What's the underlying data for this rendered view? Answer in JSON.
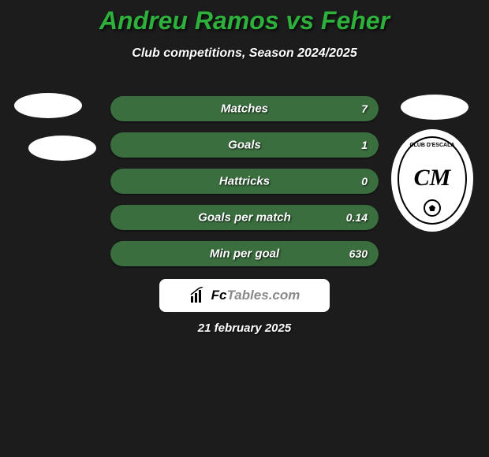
{
  "title": {
    "text": "Andreu Ramos vs Feher",
    "color": "#2eb13c",
    "fontsize": 32
  },
  "subtitle": {
    "text": "Club competitions, Season 2024/2025",
    "color": "#ffffff",
    "fontsize": 16
  },
  "background_color": "#1c1c1c",
  "rows": [
    {
      "label": "Matches",
      "value": "7",
      "fill_color": "#3a6e3e",
      "fill_pct": 100
    },
    {
      "label": "Goals",
      "value": "1",
      "fill_color": "#3a6e3e",
      "fill_pct": 100
    },
    {
      "label": "Hattricks",
      "value": "0",
      "fill_color": "#3a6e3e",
      "fill_pct": 100
    },
    {
      "label": "Goals per match",
      "value": "0.14",
      "fill_color": "#3a6e3e",
      "fill_pct": 100
    },
    {
      "label": "Min per goal",
      "value": "630",
      "fill_color": "#3a6e3e",
      "fill_pct": 100
    }
  ],
  "row_style": {
    "height": 32,
    "radius": 16,
    "gap": 14,
    "label_fontsize": 15,
    "value_fontsize": 14,
    "track_color": "#111111"
  },
  "logo": {
    "text1": "Fc",
    "text2": "Tables.com",
    "text1_color": "#000000",
    "text2_color": "#8a8a8a",
    "box_bg": "#ffffff"
  },
  "date": {
    "text": "21 february 2025",
    "color": "#ffffff"
  },
  "badge_right": {
    "label": "CLUB D'ESCALA",
    "monogram": "CM"
  }
}
